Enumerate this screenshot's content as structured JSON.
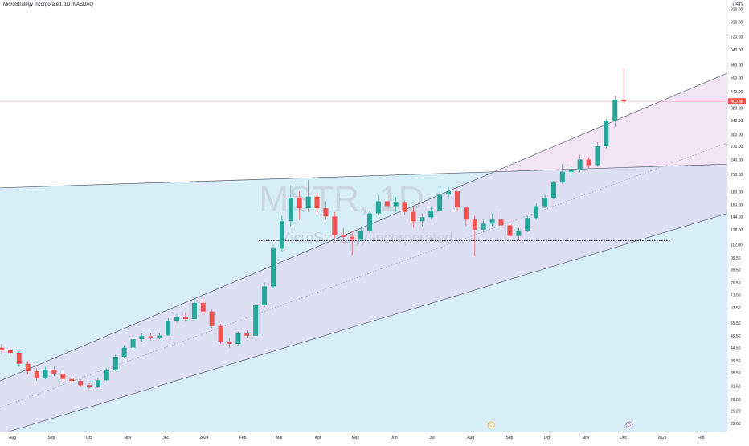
{
  "header": {
    "title": "MicroStrategy Incorporated, 1D, NASDAQ",
    "currency": "USD"
  },
  "watermark": {
    "symbol": "MSTR, 1D",
    "name": "MicroStrategy Incorporated"
  },
  "markers": {
    "earnings_label": "E",
    "dividend_label": "D"
  },
  "colors": {
    "up": "#26a69a",
    "down": "#ef5350",
    "fill_upper": "#f3e5f5",
    "fill_lower": "#d7eef9",
    "fill_channel": "#dde0f3",
    "current_line": "#f4a0a0",
    "price_tag": "#ef5350"
  },
  "chart_data": {
    "type": "candlestick",
    "title": "MicroStrategy Incorporated, 1D, NASDAQ",
    "yscale": "log",
    "ylim": [
      21.0,
      1000.0
    ],
    "y_ticks": [
      "920.00",
      "820.00",
      "720.00",
      "640.00",
      "560.00",
      "500.00",
      "440.00",
      "380.00",
      "340.00",
      "300.00",
      "270.00",
      "240.00",
      "210.00",
      "180.00",
      "160.00",
      "144.00",
      "128.00",
      "112.00",
      "99.50",
      "89.50",
      "79.50",
      "71.50",
      "63.50",
      "55.50",
      "49.50",
      "44.50",
      "39.50",
      "35.50",
      "31.50",
      "28.00",
      "25.20",
      "22.60"
    ],
    "x_ticks": [
      "Aug",
      "Sep",
      "Oct",
      "Nov",
      "Dec",
      "2024",
      "Feb",
      "Mar",
      "Apr",
      "May",
      "Jun",
      "Jul",
      "Aug",
      "Sep",
      "Oct",
      "Nov",
      "Dec",
      "2025",
      "Feb"
    ],
    "last_price": "403.48",
    "last_price_value": 403.48,
    "support_level": 116,
    "candles": [
      {
        "date": "2023-07-22",
        "o": 44.5,
        "h": 46.0,
        "l": 42.0,
        "c": 43.5
      },
      {
        "date": "2023-07-29",
        "o": 43.5,
        "h": 44.5,
        "l": 41.0,
        "c": 42.5
      },
      {
        "date": "2023-08-05",
        "o": 42.5,
        "h": 43.0,
        "l": 37.5,
        "c": 38.5
      },
      {
        "date": "2023-08-12",
        "o": 38.5,
        "h": 39.5,
        "l": 35.0,
        "c": 36.0
      },
      {
        "date": "2023-08-19",
        "o": 36.0,
        "h": 37.0,
        "l": 33.0,
        "c": 33.8
      },
      {
        "date": "2023-08-26",
        "o": 33.8,
        "h": 37.5,
        "l": 33.5,
        "c": 36.5
      },
      {
        "date": "2023-09-02",
        "o": 36.5,
        "h": 37.5,
        "l": 34.5,
        "c": 35.2
      },
      {
        "date": "2023-09-09",
        "o": 35.2,
        "h": 35.8,
        "l": 33.0,
        "c": 33.6
      },
      {
        "date": "2023-09-16",
        "o": 33.6,
        "h": 34.5,
        "l": 32.5,
        "c": 33.0
      },
      {
        "date": "2023-09-23",
        "o": 33.0,
        "h": 33.5,
        "l": 31.3,
        "c": 31.8
      },
      {
        "date": "2023-09-30",
        "o": 31.8,
        "h": 32.5,
        "l": 30.7,
        "c": 31.4
      },
      {
        "date": "2023-10-07",
        "o": 31.4,
        "h": 34.0,
        "l": 31.0,
        "c": 33.2
      },
      {
        "date": "2023-10-14",
        "o": 33.2,
        "h": 37.0,
        "l": 33.0,
        "c": 36.3
      },
      {
        "date": "2023-10-21",
        "o": 36.3,
        "h": 42.0,
        "l": 36.0,
        "c": 41.0
      },
      {
        "date": "2023-10-28",
        "o": 41.0,
        "h": 45.5,
        "l": 40.5,
        "c": 44.5
      },
      {
        "date": "2023-11-04",
        "o": 44.5,
        "h": 49.0,
        "l": 44.0,
        "c": 48.0
      },
      {
        "date": "2023-11-11",
        "o": 48.0,
        "h": 50.5,
        "l": 47.0,
        "c": 49.3
      },
      {
        "date": "2023-11-18",
        "o": 49.3,
        "h": 50.5,
        "l": 47.5,
        "c": 48.8
      },
      {
        "date": "2023-11-25",
        "o": 48.8,
        "h": 50.5,
        "l": 48.0,
        "c": 49.6
      },
      {
        "date": "2023-12-02",
        "o": 49.6,
        "h": 58.0,
        "l": 49.5,
        "c": 56.5
      },
      {
        "date": "2023-12-09",
        "o": 56.5,
        "h": 60.0,
        "l": 55.5,
        "c": 58.5
      },
      {
        "date": "2023-12-16",
        "o": 58.5,
        "h": 61.0,
        "l": 56.0,
        "c": 57.5
      },
      {
        "date": "2023-12-23",
        "o": 57.5,
        "h": 70.0,
        "l": 57.0,
        "c": 66.5
      },
      {
        "date": "2023-12-30",
        "o": 66.5,
        "h": 69.0,
        "l": 60.0,
        "c": 61.5
      },
      {
        "date": "2024-01-06",
        "o": 61.5,
        "h": 62.5,
        "l": 53.0,
        "c": 54.0
      },
      {
        "date": "2024-01-13",
        "o": 54.0,
        "h": 55.0,
        "l": 46.0,
        "c": 47.0
      },
      {
        "date": "2024-01-20",
        "o": 47.0,
        "h": 48.5,
        "l": 44.5,
        "c": 46.0
      },
      {
        "date": "2024-01-27",
        "o": 46.0,
        "h": 51.5,
        "l": 45.5,
        "c": 50.5
      },
      {
        "date": "2024-02-03",
        "o": 50.5,
        "h": 52.0,
        "l": 48.5,
        "c": 49.5
      },
      {
        "date": "2024-02-10",
        "o": 49.5,
        "h": 66.0,
        "l": 49.0,
        "c": 65.0
      },
      {
        "date": "2024-02-17",
        "o": 65.0,
        "h": 80.0,
        "l": 64.0,
        "c": 77.0
      },
      {
        "date": "2024-02-24",
        "o": 77.0,
        "h": 112.0,
        "l": 76.0,
        "c": 108.0
      },
      {
        "date": "2024-03-02",
        "o": 108.0,
        "h": 145.0,
        "l": 105.0,
        "c": 138.0
      },
      {
        "date": "2024-03-09",
        "o": 138.0,
        "h": 190.0,
        "l": 132.0,
        "c": 170.0
      },
      {
        "date": "2024-03-16",
        "o": 170.0,
        "h": 180.0,
        "l": 140.0,
        "c": 155.0
      },
      {
        "date": "2024-03-23",
        "o": 155.0,
        "h": 200.0,
        "l": 150.0,
        "c": 172.0
      },
      {
        "date": "2024-03-30",
        "o": 172.0,
        "h": 178.0,
        "l": 148.0,
        "c": 155.0
      },
      {
        "date": "2024-04-06",
        "o": 155.0,
        "h": 165.0,
        "l": 140.0,
        "c": 144.0
      },
      {
        "date": "2024-04-13",
        "o": 144.0,
        "h": 150.0,
        "l": 118.0,
        "c": 122.0
      },
      {
        "date": "2024-04-20",
        "o": 122.0,
        "h": 130.0,
        "l": 115.0,
        "c": 120.0
      },
      {
        "date": "2024-04-27",
        "o": 120.0,
        "h": 126.0,
        "l": 102.0,
        "c": 117.0
      },
      {
        "date": "2024-05-04",
        "o": 117.0,
        "h": 130.0,
        "l": 115.0,
        "c": 126.0
      },
      {
        "date": "2024-05-11",
        "o": 126.0,
        "h": 152.0,
        "l": 124.0,
        "c": 148.0
      },
      {
        "date": "2024-05-18",
        "o": 148.0,
        "h": 175.0,
        "l": 146.0,
        "c": 165.0
      },
      {
        "date": "2024-05-25",
        "o": 165.0,
        "h": 172.0,
        "l": 150.0,
        "c": 158.0
      },
      {
        "date": "2024-06-01",
        "o": 158.0,
        "h": 172.0,
        "l": 150.0,
        "c": 164.0
      },
      {
        "date": "2024-06-08",
        "o": 164.0,
        "h": 166.0,
        "l": 146.0,
        "c": 150.0
      },
      {
        "date": "2024-06-15",
        "o": 150.0,
        "h": 156.0,
        "l": 130.0,
        "c": 138.0
      },
      {
        "date": "2024-06-22",
        "o": 138.0,
        "h": 148.0,
        "l": 132.0,
        "c": 143.0
      },
      {
        "date": "2024-06-29",
        "o": 143.0,
        "h": 158.0,
        "l": 140.0,
        "c": 152.0
      },
      {
        "date": "2024-07-06",
        "o": 152.0,
        "h": 185.0,
        "l": 150.0,
        "c": 175.0
      },
      {
        "date": "2024-07-13",
        "o": 175.0,
        "h": 187.0,
        "l": 168.0,
        "c": 180.0
      },
      {
        "date": "2024-07-20",
        "o": 180.0,
        "h": 182.0,
        "l": 150.0,
        "c": 156.0
      },
      {
        "date": "2024-07-27",
        "o": 156.0,
        "h": 158.0,
        "l": 132.0,
        "c": 140.0
      },
      {
        "date": "2024-08-03",
        "o": 140.0,
        "h": 145.0,
        "l": 101.0,
        "c": 128.0
      },
      {
        "date": "2024-08-10",
        "o": 128.0,
        "h": 140.0,
        "l": 125.0,
        "c": 135.0
      },
      {
        "date": "2024-08-17",
        "o": 135.0,
        "h": 148.0,
        "l": 132.0,
        "c": 140.0
      },
      {
        "date": "2024-08-24",
        "o": 140.0,
        "h": 150.0,
        "l": 130.0,
        "c": 133.0
      },
      {
        "date": "2024-08-31",
        "o": 133.0,
        "h": 135.0,
        "l": 118.0,
        "c": 121.0
      },
      {
        "date": "2024-09-07",
        "o": 121.0,
        "h": 130.0,
        "l": 116.0,
        "c": 127.0
      },
      {
        "date": "2024-09-14",
        "o": 127.0,
        "h": 145.0,
        "l": 125.0,
        "c": 142.0
      },
      {
        "date": "2024-09-21",
        "o": 142.0,
        "h": 162.0,
        "l": 140.0,
        "c": 158.0
      },
      {
        "date": "2024-09-28",
        "o": 158.0,
        "h": 175.0,
        "l": 155.0,
        "c": 170.0
      },
      {
        "date": "2024-10-05",
        "o": 170.0,
        "h": 198.0,
        "l": 168.0,
        "c": 195.0
      },
      {
        "date": "2024-10-12",
        "o": 195.0,
        "h": 230.0,
        "l": 193.0,
        "c": 215.0
      },
      {
        "date": "2024-10-19",
        "o": 215.0,
        "h": 225.0,
        "l": 205.0,
        "c": 218.0
      },
      {
        "date": "2024-10-26",
        "o": 218.0,
        "h": 250.0,
        "l": 215.0,
        "c": 240.0
      },
      {
        "date": "2024-11-02",
        "o": 240.0,
        "h": 245.0,
        "l": 222.0,
        "c": 228.0
      },
      {
        "date": "2024-11-09",
        "o": 228.0,
        "h": 280.0,
        "l": 225.0,
        "c": 270.0
      },
      {
        "date": "2024-11-16",
        "o": 270.0,
        "h": 345.0,
        "l": 265.0,
        "c": 340.0
      },
      {
        "date": "2024-11-23",
        "o": 340.0,
        "h": 425.0,
        "l": 320.0,
        "c": 410.0
      },
      {
        "date": "2024-11-30",
        "o": 410.0,
        "h": 543.0,
        "l": 395.0,
        "c": 403.48
      }
    ],
    "trendlines": [
      {
        "name": "",
        "style": "solid",
        "points": [
          [
            "2023-07-22",
            33.0
          ],
          [
            "2025-02-22",
            520.0
          ]
        ]
      },
      {
        "name": "",
        "style": "solid",
        "points": [
          [
            "2023-07-22",
            20.5
          ],
          [
            "2025-02-22",
            148.0
          ]
        ]
      },
      {
        "name": "",
        "style": "dotted",
        "points": [
          [
            "2023-07-22",
            26.0
          ],
          [
            "2025-02-22",
            278.0
          ]
        ]
      },
      {
        "name": "",
        "style": "solid",
        "points": [
          [
            "2023-07-22",
            186.0
          ],
          [
            "2025-02-22",
            230.0
          ]
        ]
      }
    ]
  }
}
